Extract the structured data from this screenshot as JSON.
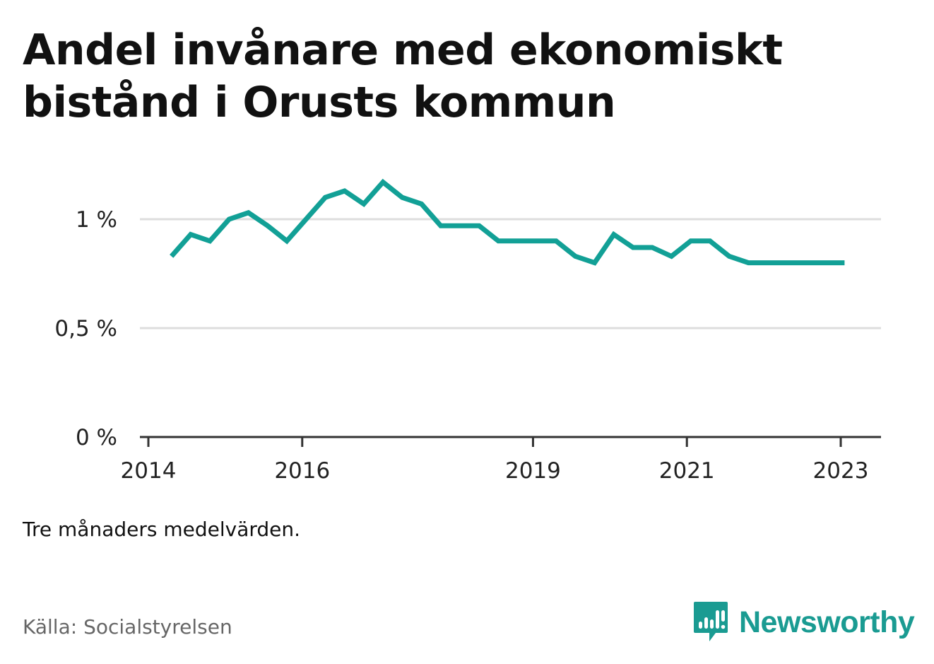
{
  "header": {
    "title": "Andel invånare med ekonomiskt bistånd i Orusts kommun"
  },
  "note": "Tre månaders medelvärden.",
  "source": "Källa: Socialstyrelsen",
  "brand": {
    "name": "Newsworthy",
    "icon": "newsworthy-logo-icon",
    "color": "#1a9b92"
  },
  "chart_data": {
    "type": "line",
    "title": "Andel invånare med ekonomiskt bistånd i Orusts kommun",
    "xlabel": "",
    "ylabel": "",
    "ylim": [
      0,
      1.25
    ],
    "xlim": [
      2014.0,
      2023.5
    ],
    "grid": true,
    "legend": "none",
    "line_color": "#12a096",
    "y_ticks": [
      {
        "value": 0,
        "label": "0 %"
      },
      {
        "value": 0.5,
        "label": "0,5 %"
      },
      {
        "value": 1,
        "label": "1 %"
      }
    ],
    "x_ticks": [
      {
        "value": 2014.0,
        "label": "2014"
      },
      {
        "value": 2016.0,
        "label": "2016"
      },
      {
        "value": 2019.0,
        "label": "2019"
      },
      {
        "value": 2021.0,
        "label": "2021"
      },
      {
        "value": 2023.0,
        "label": "2023"
      }
    ],
    "x": [
      2014.3,
      2014.55,
      2014.8,
      2015.05,
      2015.3,
      2015.55,
      2015.8,
      2016.05,
      2016.3,
      2016.55,
      2016.8,
      2017.05,
      2017.3,
      2017.55,
      2017.8,
      2018.05,
      2018.3,
      2018.55,
      2018.8,
      2019.05,
      2019.3,
      2019.55,
      2019.8,
      2020.05,
      2020.3,
      2020.55,
      2020.8,
      2021.05,
      2021.3,
      2021.55,
      2021.8,
      2022.05,
      2022.3,
      2022.55,
      2022.8,
      2023.05
    ],
    "values": [
      0.83,
      0.93,
      0.9,
      1.0,
      1.03,
      0.97,
      0.9,
      1.0,
      1.1,
      1.13,
      1.07,
      1.17,
      1.1,
      1.07,
      0.97,
      0.97,
      0.97,
      0.9,
      0.9,
      0.9,
      0.9,
      0.83,
      0.8,
      0.93,
      0.87,
      0.87,
      0.83,
      0.9,
      0.9,
      0.83,
      0.8,
      0.8,
      0.8,
      0.8,
      0.8,
      0.8
    ]
  }
}
